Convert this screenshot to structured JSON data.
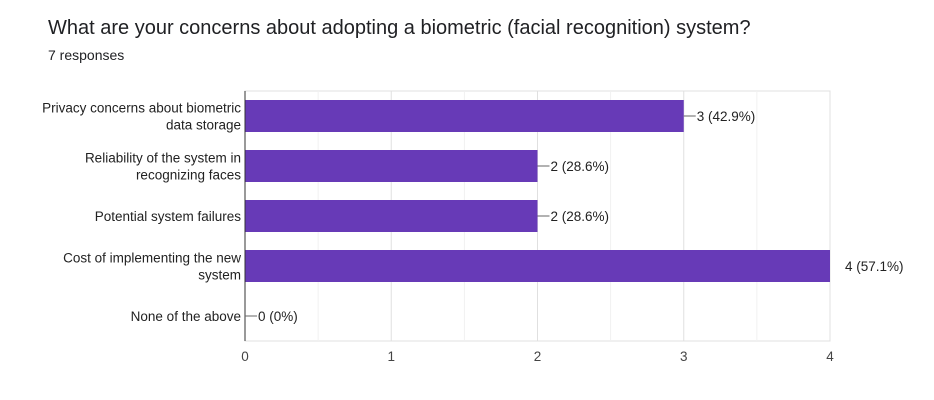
{
  "question": {
    "title": "What are your concerns about adopting a biometric (facial recognition) system?",
    "responses": "7 responses"
  },
  "chart_data": {
    "type": "bar",
    "orientation": "horizontal",
    "categories": [
      [
        "Privacy concerns about biometric",
        "data storage"
      ],
      [
        "Reliability of the system in",
        "recognizing faces"
      ],
      [
        "Potential system failures"
      ],
      [
        "Cost of implementing the new",
        "system"
      ],
      [
        "None of the above"
      ]
    ],
    "values": [
      3,
      2,
      2,
      4,
      0
    ],
    "data_labels": [
      "3 (42.9%)",
      "2 (28.6%)",
      "2 (28.6%)",
      "4 (57.1%)",
      "0 (0%)"
    ],
    "x_ticks": [
      "0",
      "1",
      "2",
      "3",
      "4"
    ],
    "xlim": [
      0,
      4
    ],
    "grid": true,
    "bar_color": "#673ab7"
  }
}
